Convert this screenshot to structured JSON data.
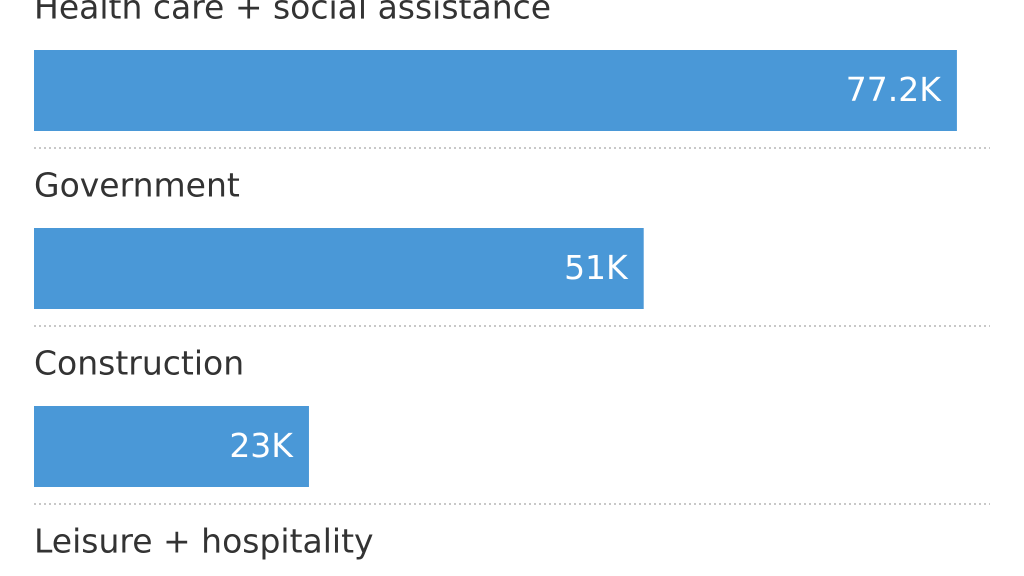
{
  "chart_data": {
    "type": "bar",
    "categories": [
      "Health care + social assistance",
      "Government",
      "Construction",
      "Leisure + hospitality"
    ],
    "values": [
      77.2,
      51,
      23,
      null
    ],
    "value_labels": [
      "77.2K",
      "51K",
      "23K",
      null
    ],
    "color": "#4a98d7"
  }
}
